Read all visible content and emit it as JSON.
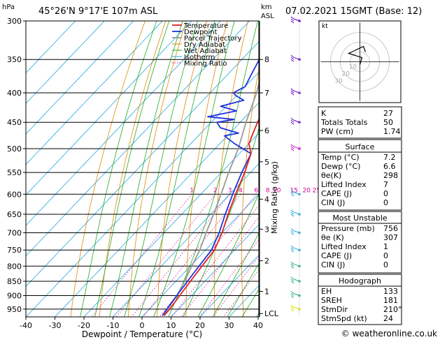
{
  "header": {
    "location": "45°26'N  9°17'E  107m  ASL",
    "datetime": "07.02.2021  15GMT  (Base: 12)",
    "hpa_label": "hPa",
    "km_label": "km",
    "asl_label": "ASL"
  },
  "footer": {
    "credit": "© weatheronline.co.uk"
  },
  "colors": {
    "temperature": "#dd2222",
    "dewpoint": "#2233dd",
    "parcel": "#999999",
    "dry_adiabat": "#e08a00",
    "wet_adiabat": "#22aa22",
    "isotherm": "#22a8e0",
    "mixing_ratio": "#dd0099"
  },
  "chart_data": {
    "type": "line",
    "title": "",
    "xlabel": "Dewpoint / Temperature (°C)",
    "ylabel_right": "Mixing Ratio (g/kg)",
    "xlim": [
      -40,
      40
    ],
    "pressure_range": [
      300,
      980
    ],
    "x_ticks": [
      "-40",
      "-30",
      "-20",
      "-10",
      "0",
      "10",
      "20",
      "30",
      "40"
    ],
    "pressure_ticks": [
      "300",
      "350",
      "400",
      "450",
      "500",
      "550",
      "600",
      "650",
      "700",
      "750",
      "800",
      "850",
      "900",
      "950"
    ],
    "km_ticks": [
      {
        "label": "8",
        "p": 350
      },
      {
        "label": "7",
        "p": 400
      },
      {
        "label": "6",
        "p": 465
      },
      {
        "label": "5",
        "p": 527
      },
      {
        "label": "4",
        "p": 612
      },
      {
        "label": "3",
        "p": 690
      },
      {
        "label": "2",
        "p": 783
      },
      {
        "label": "1",
        "p": 885
      },
      {
        "label": "LCL",
        "p": 967
      }
    ],
    "mixing_ratio_labels": [
      "1",
      "2",
      "3",
      "4",
      "6",
      "8",
      "10",
      "15",
      "20",
      "25"
    ],
    "legend": {
      "position": "top-center",
      "entries": [
        "Temperature",
        "Dewpoint",
        "Parcel Trajectory",
        "Dry Adiabat",
        "Wet Adiabat",
        "Isotherm",
        "Mixing Ratio"
      ]
    },
    "series": [
      {
        "name": "Temperature",
        "points": [
          [
            7.2,
            975
          ],
          [
            7,
            950
          ],
          [
            6,
            900
          ],
          [
            5,
            850
          ],
          [
            4,
            800
          ],
          [
            3,
            750
          ],
          [
            0,
            700
          ],
          [
            -4,
            650
          ],
          [
            -8,
            600
          ],
          [
            -12,
            550
          ],
          [
            -16,
            510
          ],
          [
            -20,
            490
          ],
          [
            -22,
            470
          ],
          [
            -24,
            450
          ],
          [
            -27,
            420
          ],
          [
            -31,
            390
          ],
          [
            -36,
            350
          ],
          [
            -40,
            325
          ],
          [
            -43,
            300
          ]
        ]
      },
      {
        "name": "Dewpoint",
        "points": [
          [
            6.6,
            975
          ],
          [
            6,
            950
          ],
          [
            5,
            900
          ],
          [
            4,
            850
          ],
          [
            3,
            800
          ],
          [
            2,
            750
          ],
          [
            -1,
            700
          ],
          [
            -5,
            650
          ],
          [
            -9,
            600
          ],
          [
            -13,
            550
          ],
          [
            -16,
            510
          ],
          [
            -25,
            490
          ],
          [
            -31,
            475
          ],
          [
            -27,
            470
          ],
          [
            -35,
            460
          ],
          [
            -38,
            450
          ],
          [
            -33,
            445
          ],
          [
            -43,
            440
          ],
          [
            -35,
            430
          ],
          [
            -42,
            422
          ],
          [
            -36,
            412
          ],
          [
            -40,
            405
          ],
          [
            -42,
            400
          ],
          [
            -40,
            390
          ],
          [
            -42,
            370
          ],
          [
            -44,
            350
          ],
          [
            -49,
            325
          ],
          [
            -52,
            300
          ]
        ]
      },
      {
        "name": "Parcel Trajectory",
        "points": [
          [
            7.2,
            975
          ],
          [
            6.8,
            967
          ],
          [
            5,
            900
          ],
          [
            3,
            850
          ],
          [
            0.5,
            800
          ],
          [
            -2,
            750
          ],
          [
            -5.5,
            700
          ],
          [
            -9,
            650
          ],
          [
            -13,
            600
          ],
          [
            -17.5,
            550
          ],
          [
            -22,
            500
          ],
          [
            -28,
            450
          ],
          [
            -34,
            400
          ],
          [
            -42,
            350
          ],
          [
            -50,
            300
          ]
        ]
      }
    ],
    "hodograph": {
      "label": "kt",
      "ring_labels": [
        "10",
        "20",
        "30"
      ]
    },
    "stability": [
      {
        "label": "K",
        "value": "27"
      },
      {
        "label": "Totals Totals",
        "value": "50"
      },
      {
        "label": "PW (cm)",
        "value": "1.74"
      }
    ],
    "surface": {
      "title": "Surface",
      "rows": [
        {
          "label": "Temp (°C)",
          "value": "7.2"
        },
        {
          "label": "Dewp (°C)",
          "value": "6.6"
        },
        {
          "label": "θe(K)",
          "value": "298"
        },
        {
          "label": "Lifted Index",
          "value": "7"
        },
        {
          "label": "CAPE (J)",
          "value": "0"
        },
        {
          "label": "CIN (J)",
          "value": "0"
        }
      ]
    },
    "most_unstable": {
      "title": "Most Unstable",
      "rows": [
        {
          "label": "Pressure (mb)",
          "value": "756"
        },
        {
          "label": "θe (K)",
          "value": "307"
        },
        {
          "label": "Lifted Index",
          "value": "1"
        },
        {
          "label": "CAPE (J)",
          "value": "0"
        },
        {
          "label": "CIN (J)",
          "value": "0"
        }
      ]
    },
    "hodograph_table": {
      "title": "Hodograph",
      "rows": [
        {
          "label": "EH",
          "value": "133"
        },
        {
          "label": "SREH",
          "value": "181"
        },
        {
          "label": "StmDir",
          "value": "210°"
        },
        {
          "label": "StmSpd (kt)",
          "value": "24"
        }
      ]
    }
  }
}
